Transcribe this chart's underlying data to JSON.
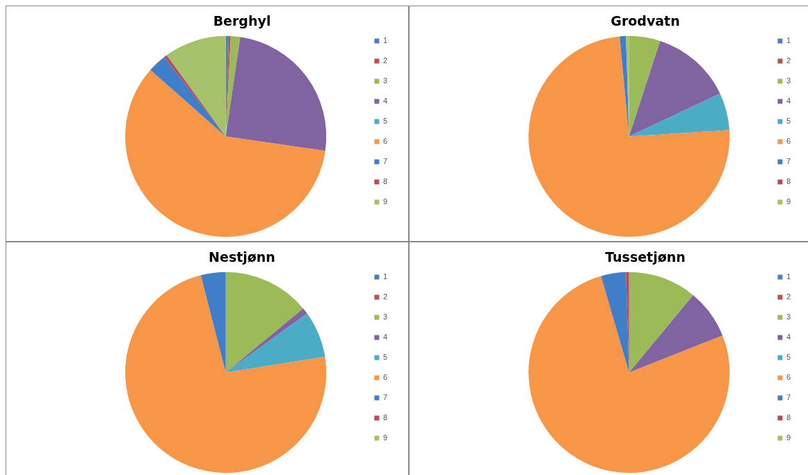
{
  "chart_data": [
    {
      "type": "pie",
      "title": "Berghyl",
      "categories": [
        "1",
        "2",
        "3",
        "4",
        "5",
        "6",
        "7",
        "8",
        "9"
      ],
      "values": [
        0.5,
        0.3,
        1.5,
        25,
        0,
        59.2,
        3,
        0.5,
        10
      ],
      "colors": [
        "#4f81bd",
        "#c0504d",
        "#9bbb59",
        "#8064a2",
        "#4bacc6",
        "#f79646",
        "#3f7ec9",
        "#b94a5a",
        "#a5c26a"
      ],
      "legend": "right"
    },
    {
      "type": "pie",
      "title": "Grodvatn",
      "categories": [
        "1",
        "2",
        "3",
        "4",
        "5",
        "6",
        "7",
        "8",
        "9"
      ],
      "values": [
        0,
        0,
        5,
        13,
        6,
        74.5,
        1,
        0,
        0.5
      ],
      "colors": [
        "#4f81bd",
        "#c0504d",
        "#9bbb59",
        "#8064a2",
        "#4bacc6",
        "#f79646",
        "#3f7ec9",
        "#b94a5a",
        "#a5c26a"
      ],
      "legend": "right"
    },
    {
      "type": "pie",
      "title": "Nestjønn",
      "categories": [
        "1",
        "2",
        "3",
        "4",
        "5",
        "6",
        "7",
        "8",
        "9"
      ],
      "values": [
        0,
        0,
        14,
        1,
        7.5,
        73.5,
        4,
        0,
        0
      ],
      "colors": [
        "#4f81bd",
        "#c0504d",
        "#9bbb59",
        "#8064a2",
        "#4bacc6",
        "#f79646",
        "#3f7ec9",
        "#b94a5a",
        "#a5c26a"
      ],
      "legend": "right"
    },
    {
      "type": "pie",
      "title": "Tussetjønn",
      "categories": [
        "1",
        "2",
        "3",
        "4",
        "5",
        "6",
        "7",
        "8",
        "9"
      ],
      "values": [
        0,
        0,
        11,
        8,
        0,
        76.5,
        4,
        0.5,
        0
      ],
      "colors": [
        "#4f81bd",
        "#c0504d",
        "#9bbb59",
        "#8064a2",
        "#4bacc6",
        "#f79646",
        "#3f7ec9",
        "#b94a5a",
        "#a5c26a"
      ],
      "legend": "right"
    }
  ]
}
